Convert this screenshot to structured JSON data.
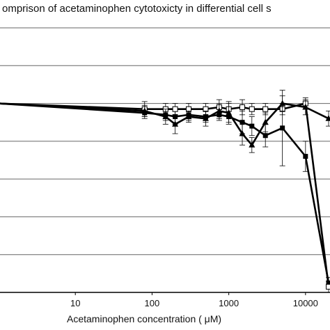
{
  "chart_data": {
    "type": "line",
    "title": "omprison of acetaminophen cytotoxicty in differential cell s",
    "xlabel": "Acetaminophen concentration ( μM)",
    "ylabel": "",
    "x_scale": "log",
    "xlim": [
      1,
      20000
    ],
    "ylim": [
      0,
      140
    ],
    "x_ticks": [
      10,
      100,
      1000,
      10000
    ],
    "x_tick_labels": [
      "10",
      "100",
      "1000",
      "10000"
    ],
    "grid": "horizontal",
    "series": [
      {
        "marker": "square-filled",
        "x": [
          1,
          80,
          150,
          200,
          300,
          500,
          750,
          1000,
          1500,
          2000,
          3000,
          5000,
          10000,
          20000
        ],
        "y": [
          100,
          95,
          94,
          93,
          94,
          93,
          94,
          93,
          90,
          88,
          83,
          87,
          72,
          5
        ],
        "err": [
          0,
          3,
          3,
          4,
          3,
          3,
          3,
          4,
          6,
          5,
          6,
          20,
          8,
          3
        ]
      },
      {
        "marker": "square-open",
        "x": [
          1,
          80,
          150,
          200,
          300,
          500,
          750,
          1000,
          1500,
          2000,
          3000,
          5000,
          10000,
          20000
        ],
        "y": [
          100,
          97,
          97,
          97,
          97,
          97,
          98,
          97,
          98,
          97,
          97,
          97,
          100,
          3
        ],
        "err": [
          0,
          4,
          3,
          3,
          3,
          3,
          4,
          4,
          4,
          3,
          3,
          3,
          3,
          3
        ]
      },
      {
        "marker": "triangle-filled",
        "x": [
          1,
          80,
          150,
          200,
          300,
          500,
          750,
          1000,
          1500,
          2000,
          3000,
          5000,
          10000,
          20000
        ],
        "y": [
          100,
          96,
          93,
          89,
          93,
          92,
          96,
          95,
          84,
          78,
          90,
          100,
          98,
          92
        ],
        "err": [
          0,
          3,
          4,
          5,
          3,
          4,
          4,
          5,
          6,
          4,
          5,
          4,
          4,
          4
        ]
      }
    ]
  }
}
